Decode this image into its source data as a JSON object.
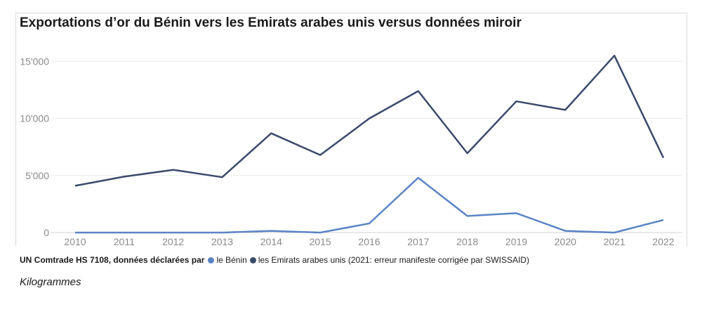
{
  "chart_data": {
    "type": "line",
    "title": "Exportations d’or du Bénin vers les Emirats arabes unis versus données miroir",
    "x": [
      "2010",
      "2011",
      "2012",
      "2013",
      "2014",
      "2015",
      "2016",
      "2017",
      "2018",
      "2019",
      "2020",
      "2021",
      "2022"
    ],
    "ylim": [
      0,
      16500
    ],
    "yticks": [
      0,
      5000,
      10000,
      15000
    ],
    "ytick_labels": [
      "0",
      "5'000",
      "10'000",
      "15'000"
    ],
    "grid": true,
    "series": [
      {
        "name": "le Bénin",
        "color": "#5b84c4",
        "values": [
          0,
          0,
          0,
          0,
          150,
          0,
          800,
          4800,
          1450,
          1700,
          150,
          0,
          1100
        ]
      },
      {
        "name": "les Emirats arabes unis (2021: erreur manifeste corrigée par SWISSAID)",
        "color": "#3a4a6b",
        "values": [
          4100,
          4900,
          5500,
          4850,
          8700,
          6800,
          10000,
          12400,
          6950,
          11500,
          10750,
          15500,
          6550
        ]
      }
    ]
  },
  "legend": {
    "source_label": "UN Comtrade HS 7108, données déclarées par"
  },
  "units_label": "Kilogrammes"
}
